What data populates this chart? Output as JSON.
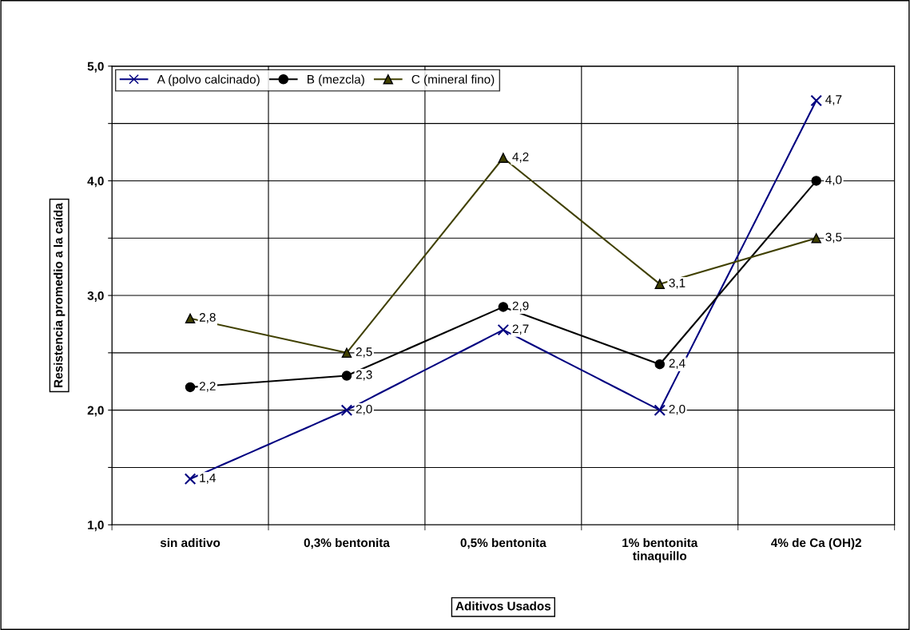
{
  "chart_data": {
    "type": "line",
    "xlabel": "Aditivos Usados",
    "ylabel": "Resistencia promedio a la caída",
    "categories": [
      "sin aditivo",
      "0,3% bentonita",
      "0,5% bentonita",
      "1% bentonita\ntinaquillo",
      "4% de Ca (OH)2"
    ],
    "series": [
      {
        "name": "A (polvo calcinado)",
        "color": "#000080",
        "marker": "cross",
        "values": [
          1.4,
          2.0,
          2.7,
          2.0,
          4.7
        ],
        "value_labels": [
          "1,4",
          "2,0",
          "2,7",
          "2,0",
          "4,7"
        ]
      },
      {
        "name": "B (mezcla)",
        "color": "#000000",
        "marker": "circle",
        "values": [
          2.2,
          2.3,
          2.9,
          2.4,
          4.0
        ],
        "value_labels": [
          "2,2",
          "2,3",
          "2,9",
          "2,4",
          "4,0"
        ]
      },
      {
        "name": "C (mineral fino)",
        "color": "#404000",
        "marker": "triangle",
        "values": [
          2.8,
          2.5,
          4.2,
          3.1,
          3.5
        ],
        "value_labels": [
          "2,8",
          "2,5",
          "4,2",
          "3,1",
          "3,5"
        ]
      }
    ],
    "ylim": [
      1,
      5
    ],
    "yticks": [
      {
        "value": 1,
        "label": "1,0"
      },
      {
        "value": 1.5,
        "label": null
      },
      {
        "value": 2,
        "label": "2,0"
      },
      {
        "value": 2.5,
        "label": null
      },
      {
        "value": 3,
        "label": "3,0"
      },
      {
        "value": 3.5,
        "label": null
      },
      {
        "value": 4,
        "label": "4,0"
      },
      {
        "value": 4.5,
        "label": null
      },
      {
        "value": 5,
        "label": "5,0"
      }
    ],
    "grid": true,
    "legend": "top left",
    "line_style": "solid"
  }
}
